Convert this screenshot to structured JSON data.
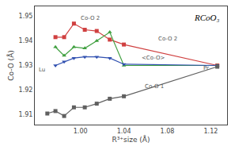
{
  "chart_data": {
    "type": "line",
    "title": "RCoO₃",
    "xlabel": "R³⁺size (Å)",
    "ylabel": "Co-O (Å)",
    "xlim": [
      0.958,
      1.135
    ],
    "ylim": [
      1.906,
      1.954
    ],
    "xticks": [
      {
        "value": 1.0,
        "label": "1.00"
      },
      1.04,
      1.08,
      1.12
    ],
    "yticks": [
      1.91,
      1.92,
      1.93,
      1.94,
      1.95
    ],
    "grid": false,
    "series": [
      {
        "color": "#d04040",
        "marker": "square",
        "x": [
          0.977,
          0.985,
          0.994,
          1.004,
          1.015,
          1.027,
          1.04,
          1.126
        ],
        "values": [
          1.9415,
          1.9415,
          1.947,
          1.9445,
          1.944,
          1.9405,
          1.9385,
          1.93
        ]
      },
      {
        "color": "#40a040",
        "marker": "triangle-up",
        "x": [
          0.977,
          0.985,
          0.994,
          1.004,
          1.015,
          1.027,
          1.04,
          1.126
        ],
        "values": [
          1.9375,
          1.934,
          1.9375,
          1.937,
          1.94,
          1.9435,
          1.93,
          1.93
        ]
      },
      {
        "color": "#3050b0",
        "marker": "triangle-down",
        "x": [
          0.977,
          0.985,
          0.994,
          1.004,
          1.015,
          1.027,
          1.04,
          1.126
        ],
        "values": [
          1.93,
          1.9315,
          1.933,
          1.9335,
          1.9335,
          1.933,
          1.9305,
          1.93
        ]
      },
      {
        "color": "#606060",
        "marker": "square",
        "x": [
          0.9695,
          0.977,
          0.985,
          0.994,
          1.004,
          1.015,
          1.027,
          1.04,
          1.126
        ],
        "values": [
          1.9105,
          1.9115,
          1.9095,
          1.913,
          1.913,
          1.9145,
          1.9165,
          1.9175,
          1.9295
        ]
      }
    ],
    "annotations": [
      {
        "text": "Co-O 2",
        "x": 0.999,
        "y": 1.9472
      },
      {
        "text": "Co-O 2",
        "x": 1.07,
        "y": 1.939
      },
      {
        "text": "<Co-O>",
        "x": 1.055,
        "y": 1.9312
      },
      {
        "text": "Co-O 1",
        "x": 1.058,
        "y": 1.9195
      },
      {
        "text": "Lu",
        "x": 0.96,
        "y": 1.9262
      },
      {
        "text": "Pr",
        "x": 1.112,
        "y": 1.927
      }
    ]
  }
}
